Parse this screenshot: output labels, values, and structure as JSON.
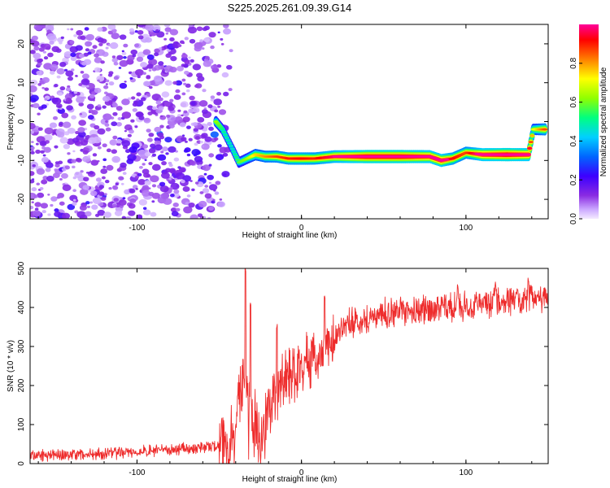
{
  "title": "S225.2025.261.09.39.G14",
  "chart_data": [
    {
      "type": "heatmap",
      "xlabel": "Height of straight line (km)",
      "ylabel": "Frequency (Hz)",
      "xlim": [
        -165,
        150
      ],
      "ylim": [
        -25,
        25
      ],
      "xticks": [
        -100,
        0,
        100
      ],
      "yticks": [
        -20,
        -10,
        0,
        10,
        20
      ],
      "colorbar": {
        "label": "Normalized spectral amplitude",
        "range": [
          0,
          1
        ],
        "ticks": [
          "0.0",
          "0.2",
          "0.4",
          "0.6",
          "0.8"
        ],
        "tick_values": [
          0.0,
          0.2,
          0.4,
          0.6,
          0.8
        ]
      },
      "ridge": [
        {
          "x": -52,
          "y": 0.0,
          "a": 0.55
        },
        {
          "x": -48,
          "y": -2.0,
          "a": 0.45
        },
        {
          "x": -42,
          "y": -7.0,
          "a": 0.4
        },
        {
          "x": -38,
          "y": -10.5,
          "a": 0.5
        },
        {
          "x": -33,
          "y": -9.5,
          "a": 0.55
        },
        {
          "x": -28,
          "y": -8.5,
          "a": 0.65
        },
        {
          "x": -22,
          "y": -9.0,
          "a": 0.7
        },
        {
          "x": -15,
          "y": -9.0,
          "a": 0.75
        },
        {
          "x": -8,
          "y": -9.5,
          "a": 0.78
        },
        {
          "x": 0,
          "y": -9.5,
          "a": 0.8
        },
        {
          "x": 8,
          "y": -9.5,
          "a": 0.78
        },
        {
          "x": 20,
          "y": -9.0,
          "a": 0.85
        },
        {
          "x": 40,
          "y": -9.0,
          "a": 0.95
        },
        {
          "x": 60,
          "y": -9.0,
          "a": 0.95
        },
        {
          "x": 78,
          "y": -9.0,
          "a": 0.9
        },
        {
          "x": 85,
          "y": -10.0,
          "a": 0.9
        },
        {
          "x": 92,
          "y": -9.5,
          "a": 0.8
        },
        {
          "x": 100,
          "y": -8.0,
          "a": 0.75
        },
        {
          "x": 110,
          "y": -8.5,
          "a": 0.9
        },
        {
          "x": 125,
          "y": -8.5,
          "a": 0.95
        },
        {
          "x": 138,
          "y": -8.5,
          "a": 0.9
        },
        {
          "x": 141,
          "y": -2.0,
          "a": 0.6
        },
        {
          "x": 148,
          "y": -2.0,
          "a": 0.75
        }
      ]
    },
    {
      "type": "line",
      "xlabel": "Height of straight line (km)",
      "ylabel": "SNR (10 * v/v)",
      "xlim": [
        -165,
        150
      ],
      "ylim": [
        0,
        500
      ],
      "xticks": [
        -100,
        0,
        100
      ],
      "yticks": [
        0,
        100,
        200,
        300,
        400,
        500
      ],
      "color": "#ee2c2c",
      "trend": [
        {
          "x": -165,
          "y": 20
        },
        {
          "x": -120,
          "y": 25
        },
        {
          "x": -80,
          "y": 35
        },
        {
          "x": -50,
          "y": 45
        },
        {
          "x": -40,
          "y": 80
        },
        {
          "x": -35,
          "y": 230
        },
        {
          "x": -31,
          "y": 130
        },
        {
          "x": -25,
          "y": 80
        },
        {
          "x": -20,
          "y": 130
        },
        {
          "x": -10,
          "y": 220
        },
        {
          "x": 0,
          "y": 250
        },
        {
          "x": 10,
          "y": 270
        },
        {
          "x": 20,
          "y": 330
        },
        {
          "x": 30,
          "y": 360
        },
        {
          "x": 50,
          "y": 385
        },
        {
          "x": 80,
          "y": 395
        },
        {
          "x": 110,
          "y": 410
        },
        {
          "x": 150,
          "y": 425
        }
      ],
      "peaks": [
        {
          "x": -34,
          "y": 500
        },
        {
          "x": -31,
          "y": 420
        },
        {
          "x": -15,
          "y": 360
        },
        {
          "x": 14,
          "y": 430
        },
        {
          "x": 95,
          "y": 460
        },
        {
          "x": 118,
          "y": 470
        },
        {
          "x": 138,
          "y": 480
        }
      ]
    }
  ]
}
